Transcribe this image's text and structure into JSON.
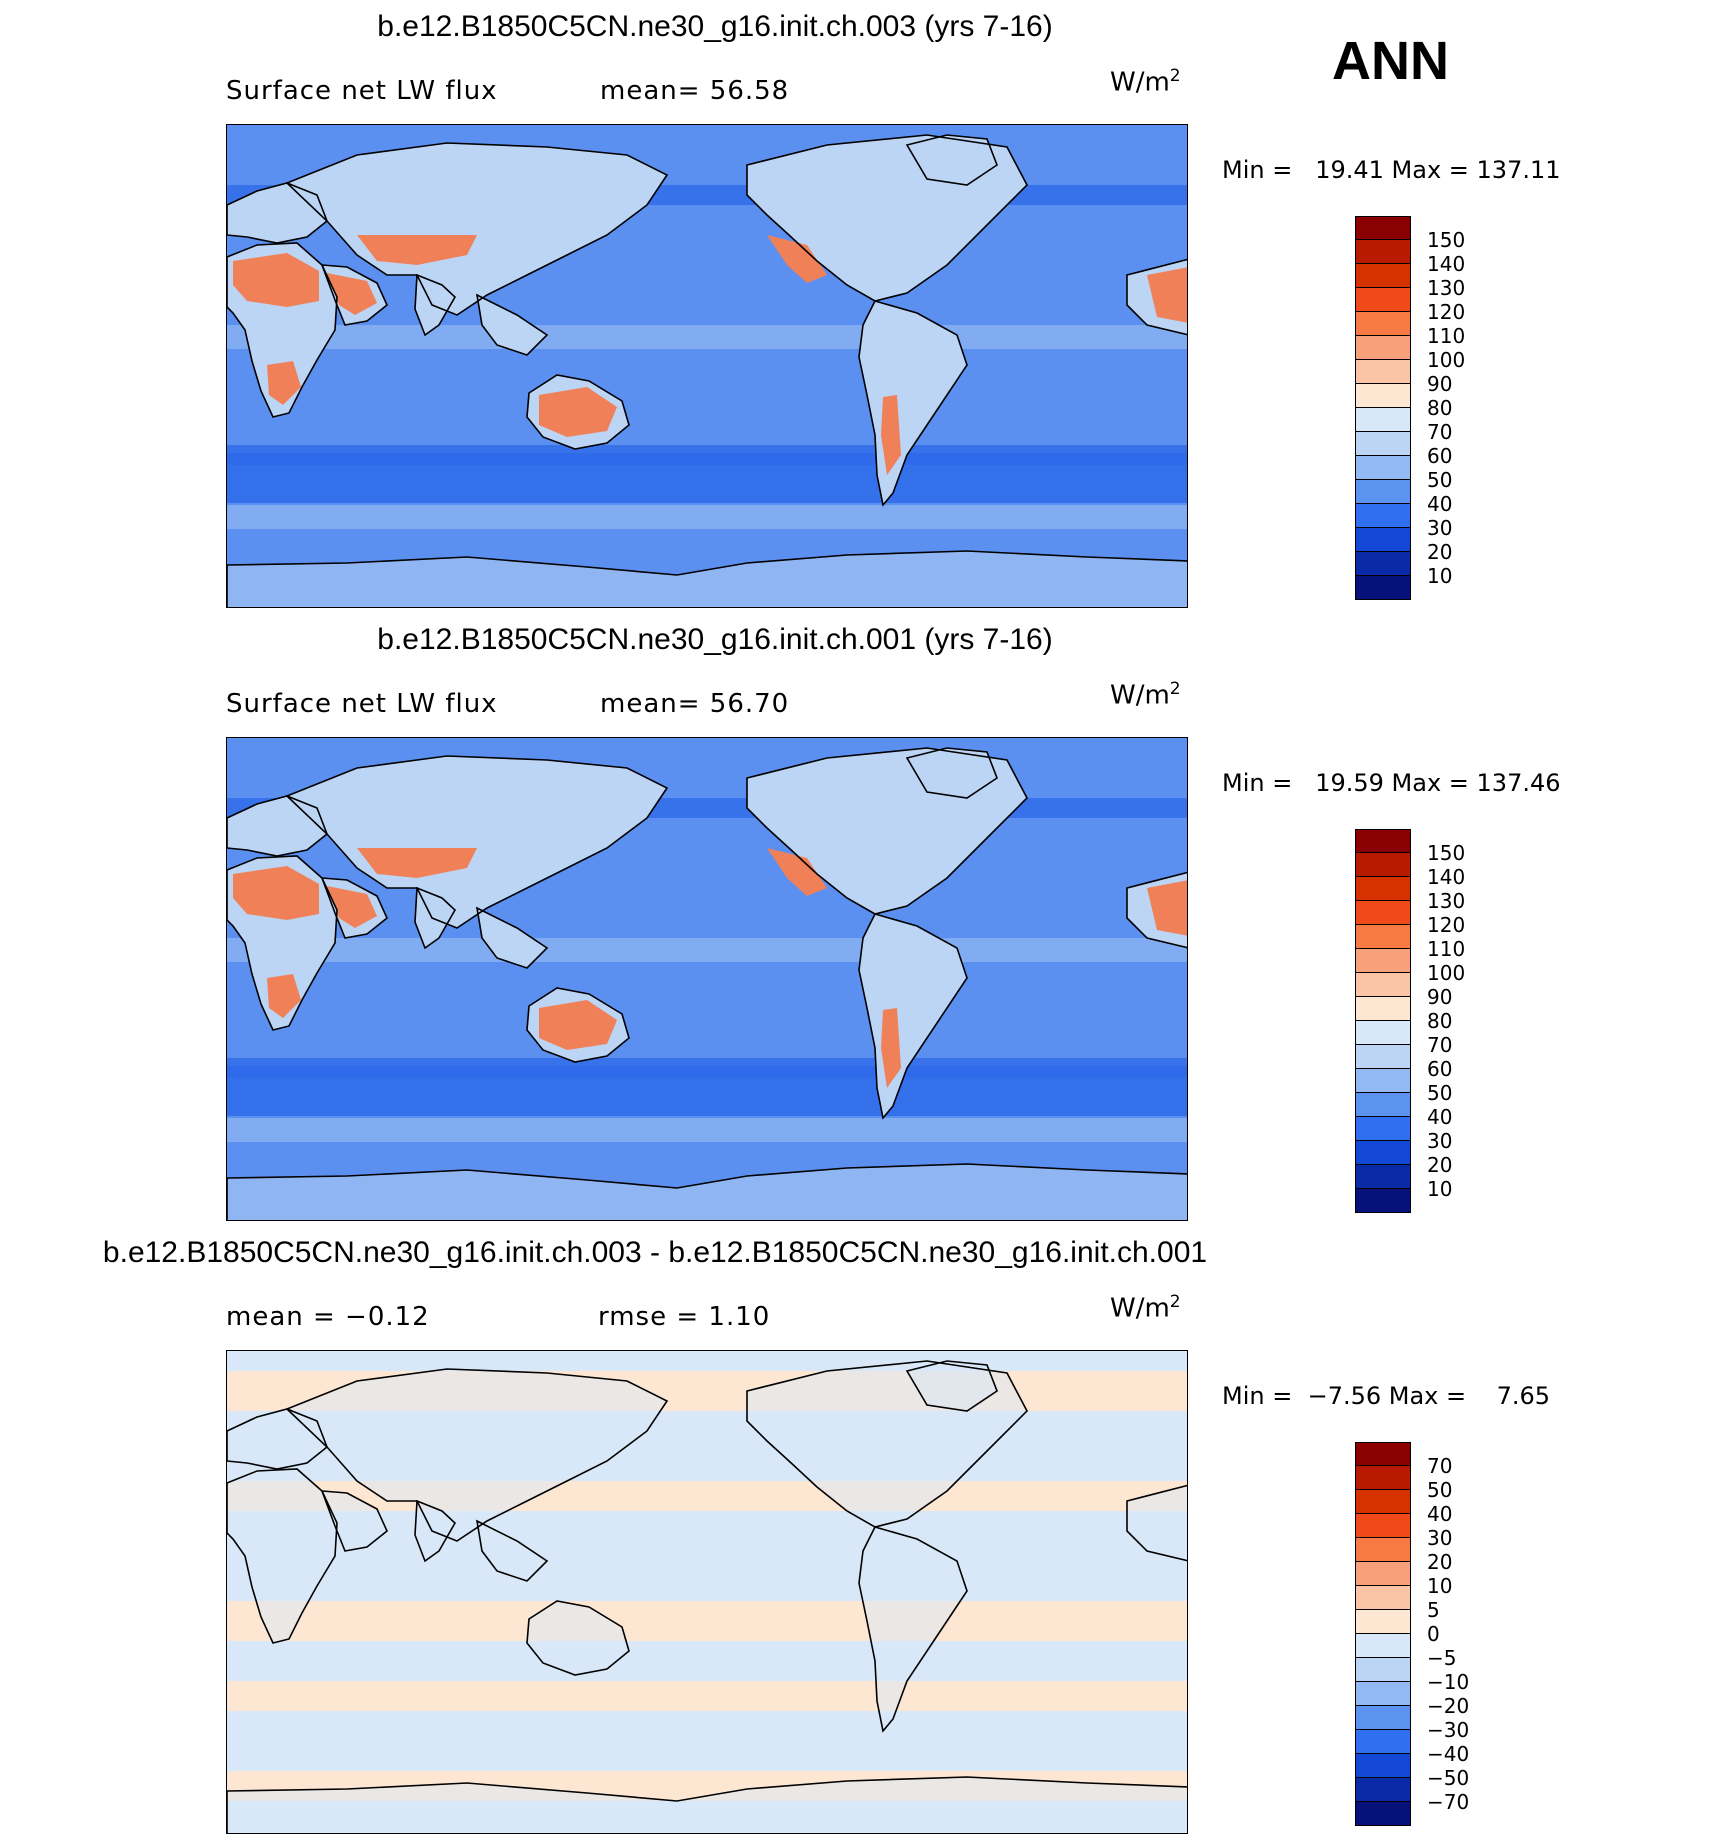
{
  "season_label": "ANN",
  "units": "W/m",
  "units_exp": "2",
  "panels": [
    {
      "title": "b.e12.B1850C5CN.ne30_g16.init.ch.003 (yrs 7-16)",
      "var_label": "Surface net LW flux",
      "stat1": "mean=  56.58",
      "stat2": "",
      "minmax": "Min =   19.41 Max = 137.11",
      "palette": "full",
      "levels": [
        "150",
        "140",
        "130",
        "120",
        "110",
        "100",
        "90",
        "80",
        "70",
        "60",
        "50",
        "40",
        "30",
        "20",
        "10"
      ]
    },
    {
      "title": "b.e12.B1850C5CN.ne30_g16.init.ch.001 (yrs 7-16)",
      "var_label": "Surface net LW flux",
      "stat1": "mean=  56.70",
      "stat2": "",
      "minmax": "Min =   19.59 Max = 137.46",
      "palette": "full",
      "levels": [
        "150",
        "140",
        "130",
        "120",
        "110",
        "100",
        "90",
        "80",
        "70",
        "60",
        "50",
        "40",
        "30",
        "20",
        "10"
      ]
    },
    {
      "title": "b.e12.B1850C5CN.ne30_g16.init.ch.003 - b.e12.B1850C5CN.ne30_g16.init.ch.001",
      "var_label": "mean =  −0.12",
      "stat1": "",
      "stat2": "rmse =   1.10",
      "minmax": "Min =  −7.56 Max =    7.65",
      "palette": "diff",
      "levels": [
        "70",
        "50",
        "40",
        "30",
        "20",
        "10",
        "5",
        "0",
        "−5",
        "−10",
        "−20",
        "−30",
        "−40",
        "−50",
        "−70"
      ]
    }
  ],
  "colors": {
    "scale": [
      "#8b0000",
      "#b81a00",
      "#d63200",
      "#f04a1a",
      "#f77a45",
      "#f8a07a",
      "#fbc4a6",
      "#fde6d2",
      "#d9e8f8",
      "#bcd5f5",
      "#93b9f2",
      "#5d93f0",
      "#2f6ff0",
      "#1348d6",
      "#0a2aa8",
      "#06127a"
    ],
    "land_dry": "#f08058",
    "land_hot": "#f35a30",
    "ocean_main": "#5b8ff0",
    "ocean_deep": "#2c68ea",
    "ocean_light": "#8fb6f2",
    "diff_pos": "#fde6d2",
    "diff_neg": "#d9e8f8"
  }
}
